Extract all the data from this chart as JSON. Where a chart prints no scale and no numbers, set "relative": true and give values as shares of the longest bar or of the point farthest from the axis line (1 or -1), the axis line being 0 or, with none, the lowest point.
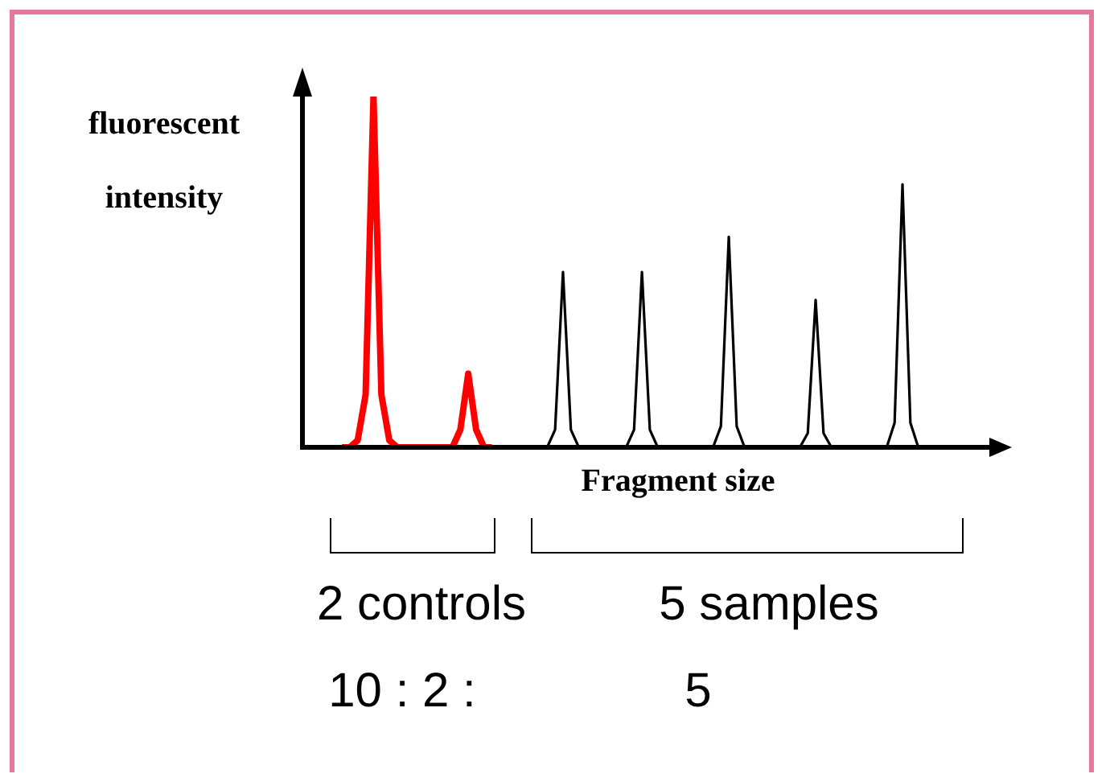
{
  "chart_data": {
    "type": "line",
    "relative": true,
    "ylabel": "fluorescent intensity",
    "xlabel": "Fragment size",
    "categories": [
      null,
      null,
      null,
      null,
      null,
      null,
      null,
      null,
      null,
      null,
      null,
      null,
      null,
      null,
      null,
      null,
      null,
      null,
      null,
      null,
      null,
      null,
      null,
      null,
      null,
      null,
      null,
      null,
      null,
      null,
      null,
      null,
      null,
      null,
      null,
      null,
      null,
      null,
      null,
      null,
      null,
      null,
      null,
      null,
      null,
      null,
      null,
      null,
      null,
      null,
      null,
      null,
      null,
      null,
      null,
      null,
      null,
      null,
      null,
      null,
      null,
      null,
      null,
      null,
      null,
      null,
      null,
      null,
      null,
      null,
      null,
      null,
      null,
      null,
      null,
      null,
      null,
      null,
      null,
      null,
      null,
      null,
      null,
      null,
      null,
      null,
      null,
      null
    ],
    "series": [
      {
        "color": "#ff0000",
        "values": [
          null,
          null,
          null,
          null,
          null,
          0,
          0,
          0.02,
          0.15,
          1,
          0.15,
          0.02,
          0,
          0,
          0,
          0,
          0,
          0,
          0,
          0,
          0.05,
          0.21,
          0.05,
          0,
          0,
          null,
          null,
          null,
          null,
          null,
          null,
          null,
          null,
          null,
          null,
          null,
          null,
          null,
          null,
          null,
          null,
          null,
          null,
          null,
          null,
          null,
          null,
          null,
          null,
          null,
          null,
          null,
          null,
          null,
          null,
          null,
          null,
          null,
          null,
          null,
          null,
          null,
          null,
          null,
          null,
          null,
          null,
          null,
          null,
          null,
          null,
          null,
          null,
          null,
          null,
          null,
          null,
          null,
          null,
          null,
          null,
          null,
          null,
          null,
          null,
          null,
          null,
          null
        ]
      },
      {
        "color": "#000000",
        "values": [
          null,
          null,
          null,
          null,
          null,
          null,
          null,
          null,
          null,
          null,
          null,
          null,
          null,
          null,
          null,
          null,
          null,
          null,
          null,
          null,
          null,
          null,
          null,
          null,
          0,
          0,
          0,
          0,
          0,
          0,
          0,
          0,
          0.05,
          0.5,
          0.05,
          0,
          0,
          0,
          0,
          0,
          0,
          0,
          0.05,
          0.5,
          0.05,
          0,
          0,
          0,
          0,
          0,
          0,
          0,
          0,
          0.06,
          0.6,
          0.06,
          0,
          0,
          0,
          0,
          0,
          0,
          0,
          0,
          0.04,
          0.42,
          0.04,
          0,
          0,
          0,
          0,
          0,
          0,
          0,
          0,
          0.07,
          0.75,
          0.07,
          0,
          0,
          0,
          null,
          null,
          null,
          null,
          null,
          null,
          null
        ]
      }
    ],
    "annotations": [
      "2 controls",
      "5 samples",
      "10 : 2 :",
      "5"
    ]
  }
}
